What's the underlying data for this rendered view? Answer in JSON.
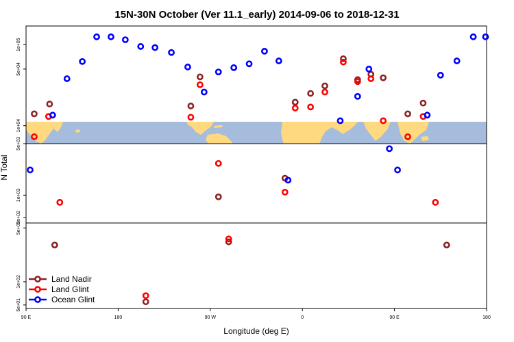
{
  "chart_data": {
    "type": "scatter",
    "title": "15N-30N October (Ver 11.1_early)   2014-09-06 to 2018-12-31",
    "xlabel": "Longitude (deg E)",
    "ylabel": "N Total",
    "x_ticks": [
      {
        "lon": 90,
        "label": "90 E"
      },
      {
        "lon": 180,
        "label": "180"
      },
      {
        "lon": 270,
        "label": "90 W"
      },
      {
        "lon": 360,
        "label": "0"
      },
      {
        "lon": 450,
        "label": "90 E"
      },
      {
        "lon": 540,
        "label": "180"
      }
    ],
    "xlim": [
      90,
      540
    ],
    "yscale": "log",
    "panels": [
      {
        "name": "upper",
        "ylim": [
          6000,
          170000
        ],
        "yticks": [
          {
            "value": 10000,
            "label": "1e+04"
          },
          {
            "value": 50000,
            "label": "5e+04"
          },
          {
            "value": 100000,
            "label": "1e+05"
          }
        ]
      },
      {
        "name": "middle",
        "ylim": [
          420,
          5000
        ],
        "yticks": [
          {
            "value": 500,
            "label": "5e+02"
          },
          {
            "value": 1000,
            "label": "1e+03"
          },
          {
            "value": 5000,
            "label": "5e+03"
          }
        ]
      },
      {
        "name": "lower",
        "ylim": [
          45,
          580
        ],
        "yticks": [
          {
            "value": 50,
            "label": "5e+01"
          },
          {
            "value": 100,
            "label": "1e+02"
          },
          {
            "value": 500,
            "label": "5e+02"
          }
        ]
      }
    ],
    "series": [
      {
        "name": "Land Nadir",
        "color": "#8b2323",
        "points": [
          {
            "x": 98,
            "y": 14000,
            "panel": 0
          },
          {
            "x": 113,
            "y": 18500,
            "panel": 0
          },
          {
            "x": 118,
            "y": 300,
            "panel": 2
          },
          {
            "x": 207,
            "y": 55,
            "panel": 2
          },
          {
            "x": 251,
            "y": 17500,
            "panel": 0
          },
          {
            "x": 260,
            "y": 40000,
            "panel": 0
          },
          {
            "x": 278,
            "y": 950,
            "panel": 1
          },
          {
            "x": 288,
            "y": 330,
            "panel": 2
          },
          {
            "x": 343,
            "y": 1700,
            "panel": 1
          },
          {
            "x": 353,
            "y": 19500,
            "panel": 0
          },
          {
            "x": 368,
            "y": 25000,
            "panel": 0
          },
          {
            "x": 382,
            "y": 31000,
            "panel": 0
          },
          {
            "x": 400,
            "y": 67000,
            "panel": 0
          },
          {
            "x": 414,
            "y": 37000,
            "panel": 0
          },
          {
            "x": 427,
            "y": 43000,
            "panel": 0
          },
          {
            "x": 439,
            "y": 39000,
            "panel": 0
          },
          {
            "x": 463,
            "y": 14000,
            "panel": 0
          },
          {
            "x": 478,
            "y": 19000,
            "panel": 0
          },
          {
            "x": 501,
            "y": 300,
            "panel": 2
          }
        ]
      },
      {
        "name": "Land Glint",
        "color": "#ff0000",
        "points": [
          {
            "x": 98,
            "y": 7300,
            "panel": 0
          },
          {
            "x": 112,
            "y": 13000,
            "panel": 0
          },
          {
            "x": 123,
            "y": 800,
            "panel": 1
          },
          {
            "x": 207,
            "y": 66,
            "panel": 2
          },
          {
            "x": 251,
            "y": 12700,
            "panel": 0
          },
          {
            "x": 260,
            "y": 32000,
            "panel": 0
          },
          {
            "x": 278,
            "y": 2700,
            "panel": 1
          },
          {
            "x": 288,
            "y": 360,
            "panel": 2
          },
          {
            "x": 343,
            "y": 1100,
            "panel": 1
          },
          {
            "x": 353,
            "y": 16500,
            "panel": 0
          },
          {
            "x": 368,
            "y": 17000,
            "panel": 0
          },
          {
            "x": 382,
            "y": 26000,
            "panel": 0
          },
          {
            "x": 400,
            "y": 61000,
            "panel": 0
          },
          {
            "x": 414,
            "y": 35000,
            "panel": 0
          },
          {
            "x": 427,
            "y": 38000,
            "panel": 0
          },
          {
            "x": 439,
            "y": 11500,
            "panel": 0
          },
          {
            "x": 463,
            "y": 7300,
            "panel": 0
          },
          {
            "x": 478,
            "y": 13000,
            "panel": 0
          },
          {
            "x": 490,
            "y": 800,
            "panel": 1
          }
        ]
      },
      {
        "name": "Ocean Glint",
        "color": "#0000ff",
        "points": [
          {
            "x": 94,
            "y": 2200,
            "panel": 1
          },
          {
            "x": 116,
            "y": 13500,
            "panel": 0
          },
          {
            "x": 130,
            "y": 38000,
            "panel": 0
          },
          {
            "x": 145,
            "y": 62000,
            "panel": 0
          },
          {
            "x": 159,
            "y": 125000,
            "panel": 0
          },
          {
            "x": 173,
            "y": 125000,
            "panel": 0
          },
          {
            "x": 187,
            "y": 115000,
            "panel": 0
          },
          {
            "x": 202,
            "y": 95000,
            "panel": 0
          },
          {
            "x": 216,
            "y": 92000,
            "panel": 0
          },
          {
            "x": 232,
            "y": 80000,
            "panel": 0
          },
          {
            "x": 248,
            "y": 53000,
            "panel": 0
          },
          {
            "x": 264,
            "y": 26000,
            "panel": 0
          },
          {
            "x": 278,
            "y": 46000,
            "panel": 0
          },
          {
            "x": 293,
            "y": 52000,
            "panel": 0
          },
          {
            "x": 308,
            "y": 58000,
            "panel": 0
          },
          {
            "x": 323,
            "y": 83000,
            "panel": 0
          },
          {
            "x": 337,
            "y": 63000,
            "panel": 0
          },
          {
            "x": 346,
            "y": 1600,
            "panel": 1
          },
          {
            "x": 397,
            "y": 11500,
            "panel": 0
          },
          {
            "x": 414,
            "y": 23000,
            "panel": 0
          },
          {
            "x": 425,
            "y": 50000,
            "panel": 0
          },
          {
            "x": 445,
            "y": 5200,
            "panel": 0
          },
          {
            "x": 453,
            "y": 2200,
            "panel": 1
          },
          {
            "x": 482,
            "y": 13500,
            "panel": 0
          },
          {
            "x": 495,
            "y": 42000,
            "panel": 0
          },
          {
            "x": 511,
            "y": 63000,
            "panel": 0
          },
          {
            "x": 527,
            "y": 125000,
            "panel": 0
          },
          {
            "x": 539,
            "y": 125000,
            "panel": 0
          }
        ]
      }
    ],
    "legend_position": "bottom-left",
    "background_map": true,
    "colors": {
      "ocean": "#a5bcdc",
      "land": "#ffd97f",
      "frame": "#000000"
    }
  }
}
